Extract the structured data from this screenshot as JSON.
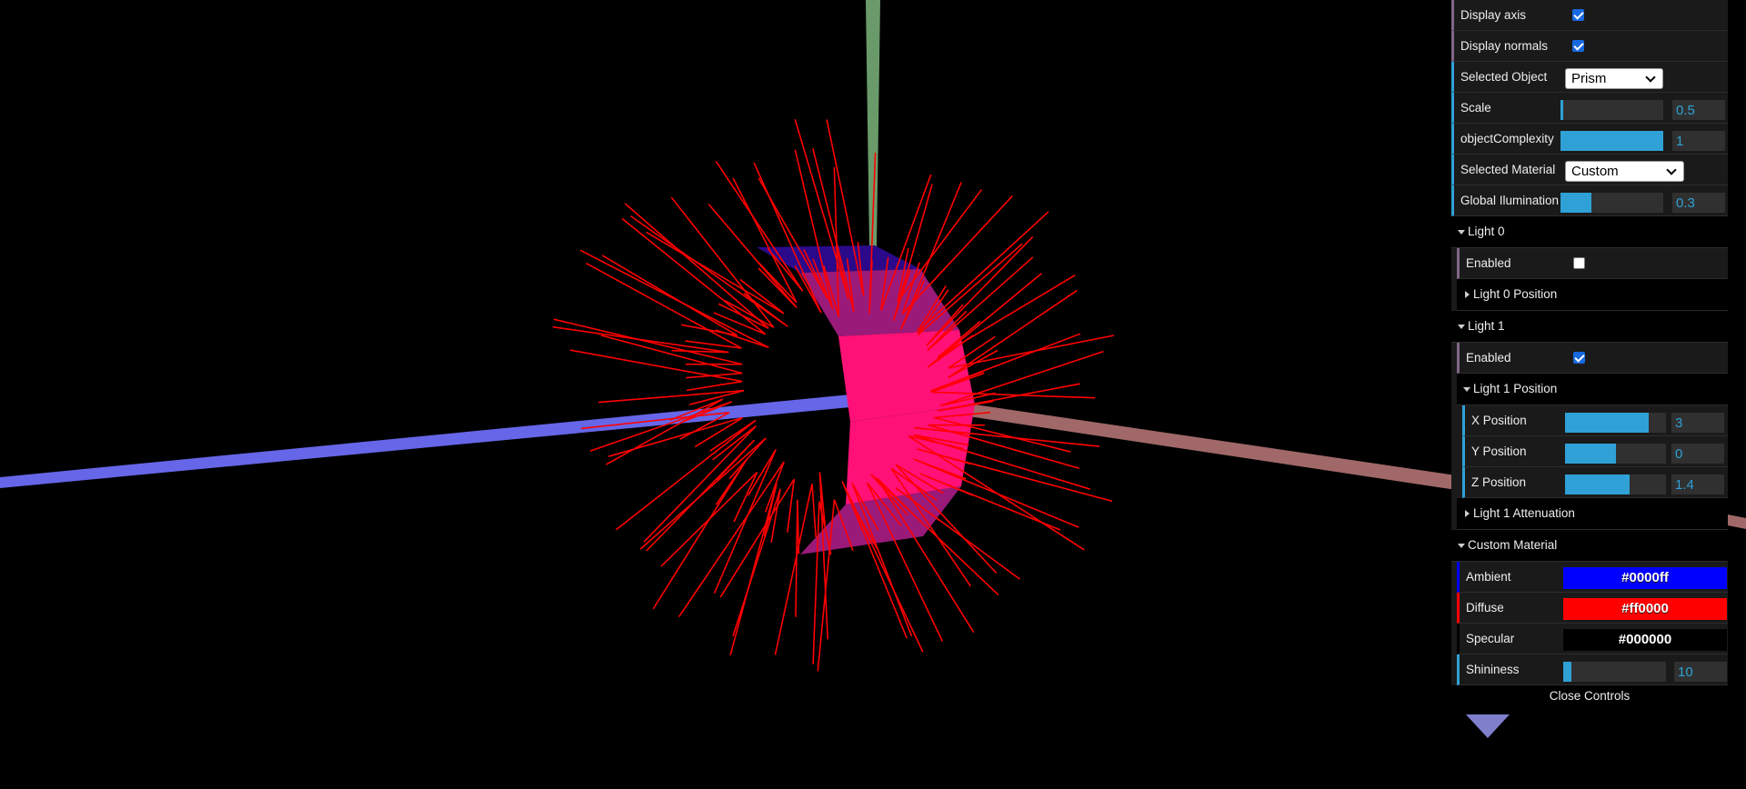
{
  "controls": {
    "display_axis": {
      "label": "Display axis",
      "checked": true
    },
    "display_normals": {
      "label": "Display normals",
      "checked": true
    },
    "selected_object": {
      "label": "Selected Object",
      "value": "Prism"
    },
    "scale": {
      "label": "Scale",
      "value": "0.5",
      "fraction": 0.02
    },
    "object_complexity": {
      "label": "objectComplexity",
      "value": "1",
      "fraction": 1.0
    },
    "selected_material": {
      "label": "Selected Material",
      "value": "Custom"
    },
    "global_illumination": {
      "label": "Global Ilumination",
      "value": "0.3",
      "fraction": 0.3
    }
  },
  "light0": {
    "title": "Light 0",
    "enabled": {
      "label": "Enabled",
      "checked": false
    },
    "position_folder": "Light 0 Position"
  },
  "light1": {
    "title": "Light 1",
    "enabled": {
      "label": "Enabled",
      "checked": true
    },
    "position_folder": "Light 1 Position",
    "x": {
      "label": "X Position",
      "value": "3",
      "fraction": 0.83
    },
    "y": {
      "label": "Y Position",
      "value": "0",
      "fraction": 0.5
    },
    "z": {
      "label": "Z Position",
      "value": "1.4",
      "fraction": 0.64
    },
    "attenuation_folder": "Light 1 Attenuation"
  },
  "custom_material": {
    "title": "Custom Material",
    "ambient": {
      "label": "Ambient",
      "value": "#0000ff",
      "color": "#0000ff"
    },
    "diffuse": {
      "label": "Diffuse",
      "value": "#ff0000",
      "color": "#ff0000"
    },
    "specular": {
      "label": "Specular",
      "value": "#000000",
      "color": "#000000"
    },
    "shininess": {
      "label": "Shininess",
      "value": "10",
      "fraction": 0.08
    }
  },
  "close_controls": "Close Controls",
  "colors": {
    "background": "#000000",
    "x_axis": "#a06868",
    "y_axis": "#6a9a6a",
    "z_axis": "#6666e8",
    "normals": "#ff0000",
    "prism_front": "#ff1177",
    "prism_side": "#9a1a7a",
    "prism_top": "#2a0a8a",
    "slider_fill": "#2fa1d6"
  }
}
